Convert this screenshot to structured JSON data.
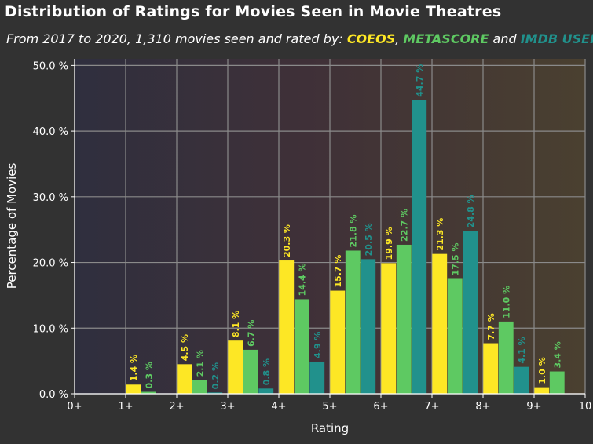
{
  "header": {
    "title": "Distribution of Ratings for Movies Seen in Movie Theatres",
    "subtitle_prefix": "From 2017 to 2020, 1,310 movies seen and rated by: ",
    "subtitle_sep1": ", ",
    "subtitle_sep2": " and "
  },
  "chart_data": {
    "type": "bar",
    "xlabel": "Rating",
    "ylabel": "Percentage of Movies",
    "xlim": [
      0,
      10
    ],
    "ylim": [
      0,
      51
    ],
    "grid": true,
    "x_ticks": [
      "0+",
      "1+",
      "2+",
      "3+",
      "4+",
      "5+",
      "6+",
      "7+",
      "8+",
      "9+",
      "10"
    ],
    "y_ticks": [
      {
        "value": 0,
        "label": "0.0 %"
      },
      {
        "value": 10,
        "label": "10.0 %"
      },
      {
        "value": 20,
        "label": "20.0 %"
      },
      {
        "value": 30,
        "label": "30.0 %"
      },
      {
        "value": 40,
        "label": "40.0 %"
      },
      {
        "value": 50,
        "label": "50.0 %"
      }
    ],
    "categories": [
      "0+",
      "1+",
      "2+",
      "3+",
      "4+",
      "5+",
      "6+",
      "7+",
      "8+",
      "9+"
    ],
    "series": [
      {
        "name": "COEOS",
        "color": "#fde725",
        "values": [
          null,
          1.4,
          4.5,
          8.1,
          20.3,
          15.7,
          19.9,
          21.3,
          7.7,
          1.0
        ],
        "labels": [
          "",
          "1.4 %",
          "4.5 %",
          "8.1 %",
          "20.3 %",
          "15.7 %",
          "19.9 %",
          "21.3 %",
          "7.7 %",
          "1.0 %"
        ]
      },
      {
        "name": "METASCORE",
        "color": "#5ec962",
        "values": [
          null,
          0.3,
          2.1,
          6.7,
          14.4,
          21.8,
          22.7,
          17.5,
          11.0,
          3.4
        ],
        "labels": [
          "",
          "0.3 %",
          "2.1 %",
          "6.7 %",
          "14.4 %",
          "21.8 %",
          "22.7 %",
          "17.5 %",
          "11.0 %",
          "3.4 %"
        ]
      },
      {
        "name": "IMDB USERS",
        "color": "#21918c",
        "values": [
          null,
          null,
          0.2,
          0.8,
          4.9,
          20.5,
          44.7,
          24.8,
          4.1,
          null
        ],
        "labels": [
          "",
          "",
          "0.2 %",
          "0.8 %",
          "4.9 %",
          "20.5 %",
          "44.7 %",
          "24.8 %",
          "4.1 %",
          ""
        ]
      }
    ]
  }
}
